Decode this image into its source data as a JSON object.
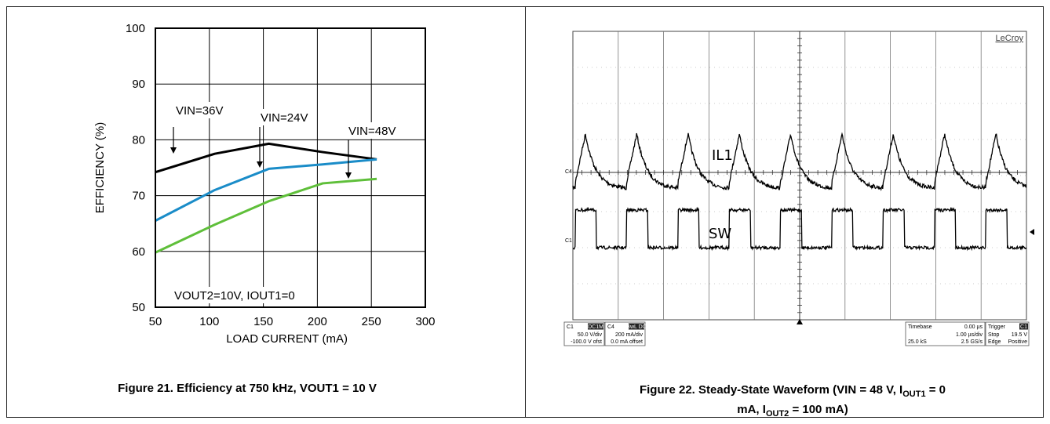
{
  "figure21": {
    "caption": "Figure 21. Efficiency at 750 kHz, VOUT1 = 10 V"
  },
  "figure22": {
    "caption_line1": "Figure 22. Steady-State Waveform (VIN = 48 V, IOUT1 = 0",
    "caption_line2": "mA, IOUT2 = 100 mA)"
  },
  "chart_data": [
    {
      "type": "line",
      "xlabel": "LOAD CURRENT (mA)",
      "ylabel": "EFFICIENCY (%)",
      "xlim": [
        50,
        300
      ],
      "ylim": [
        50,
        100
      ],
      "xticks": [
        "50",
        "100",
        "150",
        "200",
        "250",
        "300"
      ],
      "yticks": [
        "50",
        "60",
        "70",
        "80",
        "90",
        "100"
      ],
      "grid": true,
      "series": [
        {
          "name": "VIN=36V",
          "color": "#000000",
          "x": [
            50,
            105,
            155,
            205,
            255
          ],
          "y": [
            74.2,
            77.5,
            79.3,
            77.8,
            76.5
          ]
        },
        {
          "name": "VIN=24V",
          "color": "#1a8cc8",
          "x": [
            50,
            105,
            155,
            205,
            255
          ],
          "y": [
            65.5,
            71.0,
            74.8,
            75.6,
            76.5
          ]
        },
        {
          "name": "VIN=48V",
          "color": "#5fbf3a",
          "x": [
            50,
            105,
            155,
            205,
            255
          ],
          "y": [
            59.8,
            64.8,
            69.0,
            72.2,
            73.0
          ]
        }
      ],
      "annotations": [
        "VIN=36V",
        "VIN=24V",
        "VIN=48V",
        "VOUT2=10V, IOUT1=0"
      ]
    },
    {
      "type": "line",
      "brand": "LeCroy",
      "series": [
        {
          "name": "IL1",
          "channel": "C4",
          "color": "#000000"
        },
        {
          "name": "SW",
          "channel": "C1",
          "color": "#000000"
        }
      ],
      "channel_boxes": [
        {
          "id": "C1",
          "tag": "DC1M",
          "line1": "50.0 V/div",
          "line2": "-100.0 V ofst"
        },
        {
          "id": "C4",
          "tag": "BwL DC",
          "line1": "200 mA/div",
          "line2": "0.0 mA offset"
        }
      ],
      "timebase_box": {
        "label": "Timebase",
        "value": "0.00 µs",
        "line2": "1.00 µs/div",
        "line3_left": "25.0 kS",
        "line3_right": "2.5 GS/s"
      },
      "trigger_box": {
        "label": "Trigger",
        "tag": "C1",
        "line2_left": "Stop",
        "line2_right": "19.5 V",
        "line3_left": "Edge",
        "line3_right": "Positive"
      }
    }
  ]
}
